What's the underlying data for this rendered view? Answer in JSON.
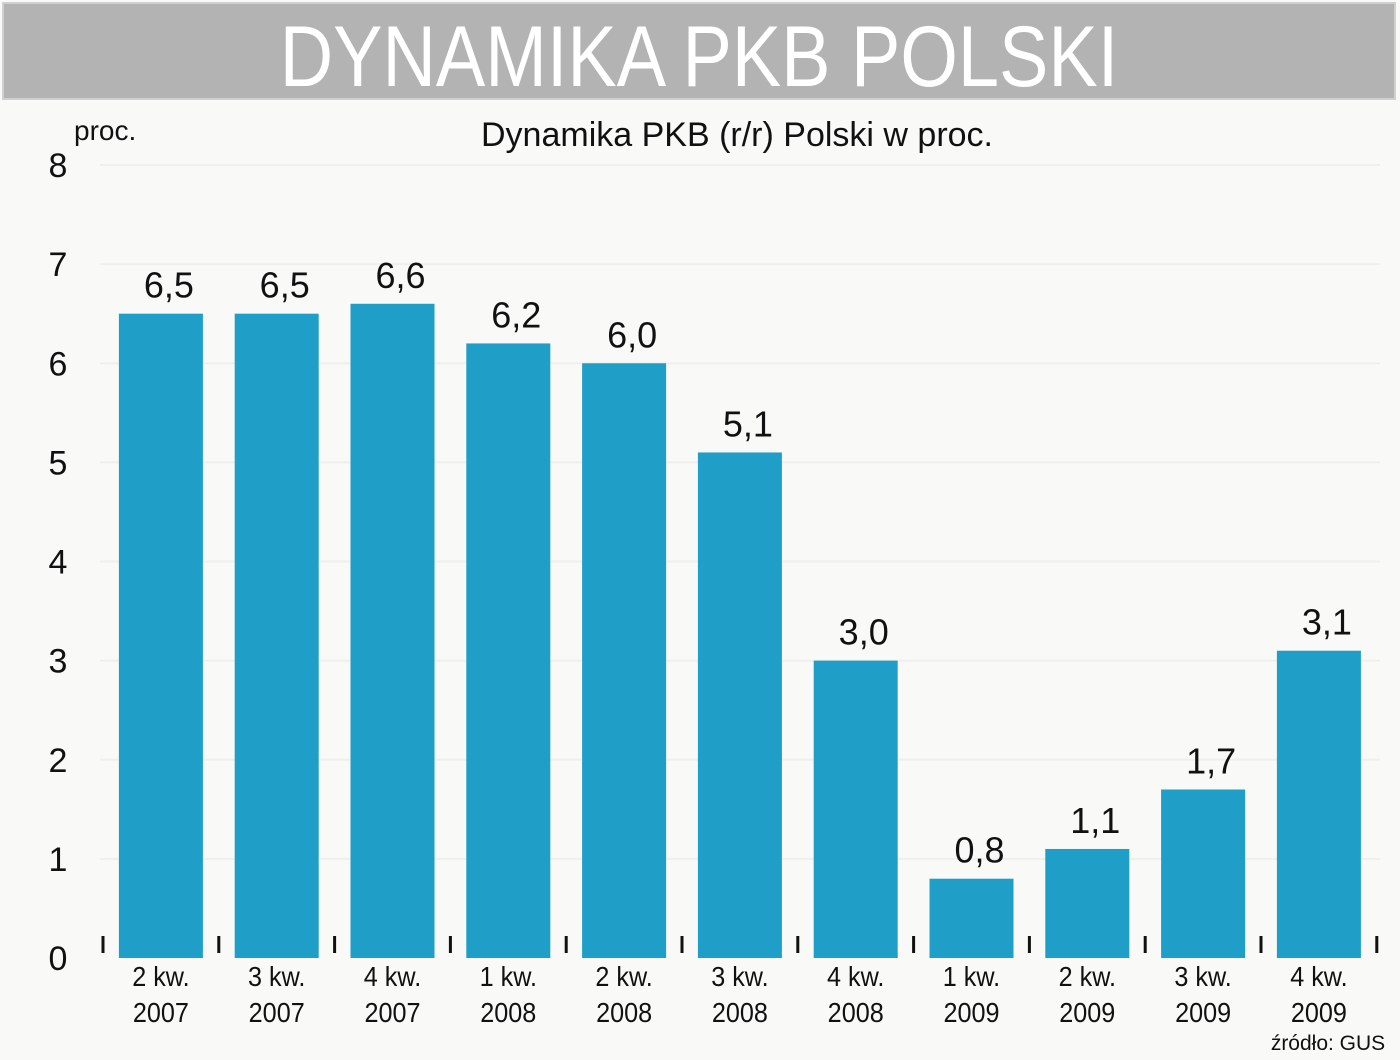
{
  "header": {
    "title": "DYNAMIKA PKB POLSKI"
  },
  "chart_data": {
    "type": "bar",
    "title": "Dynamika PKB (r/r) Polski w proc.",
    "ylabel": "proc.",
    "xlabel": "",
    "ylim": [
      0,
      8
    ],
    "yticks": [
      "0",
      "1",
      "2",
      "3",
      "4",
      "5",
      "6",
      "7",
      "8"
    ],
    "categories": [
      [
        "2 kw.",
        "2007"
      ],
      [
        "3 kw.",
        "2007"
      ],
      [
        "4 kw.",
        "2007"
      ],
      [
        "1 kw.",
        "2008"
      ],
      [
        "2 kw.",
        "2008"
      ],
      [
        "3 kw.",
        "2008"
      ],
      [
        "4 kw.",
        "2008"
      ],
      [
        "1 kw.",
        "2009"
      ],
      [
        "2 kw.",
        "2009"
      ],
      [
        "3 kw.",
        "2009"
      ],
      [
        "4 kw.",
        "2009"
      ]
    ],
    "values": [
      6.5,
      6.5,
      6.6,
      6.2,
      6.0,
      5.1,
      3.0,
      0.8,
      1.1,
      1.7,
      3.1
    ],
    "value_labels": [
      "6,5",
      "6,5",
      "6,6",
      "6,2",
      "6,0",
      "5,1",
      "3,0",
      "0,8",
      "1,1",
      "1,7",
      "3,1"
    ],
    "grid": true,
    "bar_color": "#1f9fc8",
    "source": "źródło: GUS"
  }
}
